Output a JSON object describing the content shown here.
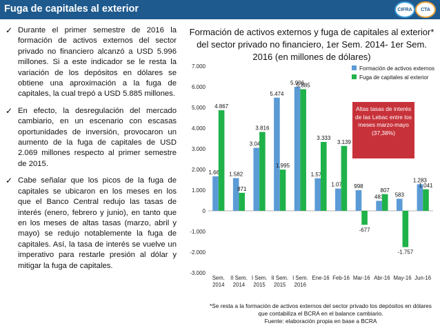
{
  "header": {
    "title": "Fuga de capitales al exterior",
    "logo_1": "CIFRA",
    "logo_2": "CTA"
  },
  "bullets": [
    "Durante el primer semestre de 2016 la formación de activos externos del sector privado no financiero alcanzó a USD 5.996 millones. Si a este indicador se le resta la variación de los depósitos en dólares se obtiene una aproximación a la fuga de capitales, la cual trepó a USD 5.885 millones.",
    "En efecto, la desregulación del mercado cambiario, en un escenario con escasas oportunidades de inversión, provocaron un aumento de la fuga de capitales de USD 2.069 millones respecto al primer semestre de 2015.",
    "Cabe señalar que los picos de la fuga de capitales se ubicaron en los meses en los que el Banco Central redujo las tasas de interés (enero, febrero y junio), en tanto que en los meses de altas tasas (marzo, abril y mayo) se redujo notablemente la fuga de capitales. Así, la tasa de interés se vuelve un imperativo para restarle presión al dólar y mitigar la fuga de capitales."
  ],
  "callout": {
    "text": "Altas tasas de interés de las Lebac entre los meses marzo-mayo (37,38%)"
  },
  "footnote": {
    "line1": "*Se resta a la formación de activos externos del sector privado los depósitos en dólares que contabiliza el BCRA en el balance cambiario.",
    "line2": "Fuente: elaboración propia en base a BCRA"
  },
  "colors": {
    "header_bg": "#1f5a8e",
    "series_formacion": "#5b9bd5",
    "series_fuga": "#1fb24a",
    "callout_bg": "#c7323a"
  },
  "chart_data": {
    "type": "bar",
    "title": "Formación de activos externos y fuga de capitales al exterior* del sector privado no financiero, 1er Sem. 2014- 1er Sem. 2016 (en millones de dólares)",
    "categories": [
      [
        "Sem.",
        "2014"
      ],
      [
        "II Sem.",
        "2014"
      ],
      [
        "I Sem.",
        "2015"
      ],
      [
        "II Sem.",
        "2015"
      ],
      [
        "I Sem.",
        "2016"
      ],
      [
        "Ene-16"
      ],
      [
        "Feb-16"
      ],
      [
        "Mar-16"
      ],
      [
        "Abr-16"
      ],
      [
        "May-16"
      ],
      [
        "Jun-16"
      ]
    ],
    "series": [
      {
        "name": "Formación de activos externos",
        "values": [
          1668,
          1582,
          3049,
          5474,
          5996,
          1574,
          1076,
          998,
          483,
          583,
          1283
        ],
        "labels": [
          "1.668",
          "1.582",
          "3.049",
          "5.474",
          "5.996",
          "1.574",
          "1.076",
          "998",
          "483",
          "583",
          "1.283"
        ]
      },
      {
        "name": "Fuga de capitales al exterior",
        "values": [
          4867,
          871,
          3816,
          1995,
          5885,
          3333,
          3139,
          -677,
          807,
          -1757,
          1041
        ],
        "labels": [
          "4.867",
          "871",
          "3.816",
          "1.995",
          "5.885",
          "3.333",
          "3.139",
          "-677",
          "807",
          "-1.757",
          "1.041"
        ]
      }
    ],
    "ylim": [
      -3000,
      7000
    ],
    "yticks": [
      -3000,
      -2000,
      -1000,
      0,
      1000,
      2000,
      3000,
      4000,
      5000,
      6000,
      7000
    ],
    "ytick_labels": [
      "-3.000",
      "-2.000",
      "-1.000",
      "0",
      "1.000",
      "2.000",
      "3.000",
      "4.000",
      "5.000",
      "6.000",
      "7.000"
    ],
    "legend_position": "top-right",
    "grid": false
  }
}
